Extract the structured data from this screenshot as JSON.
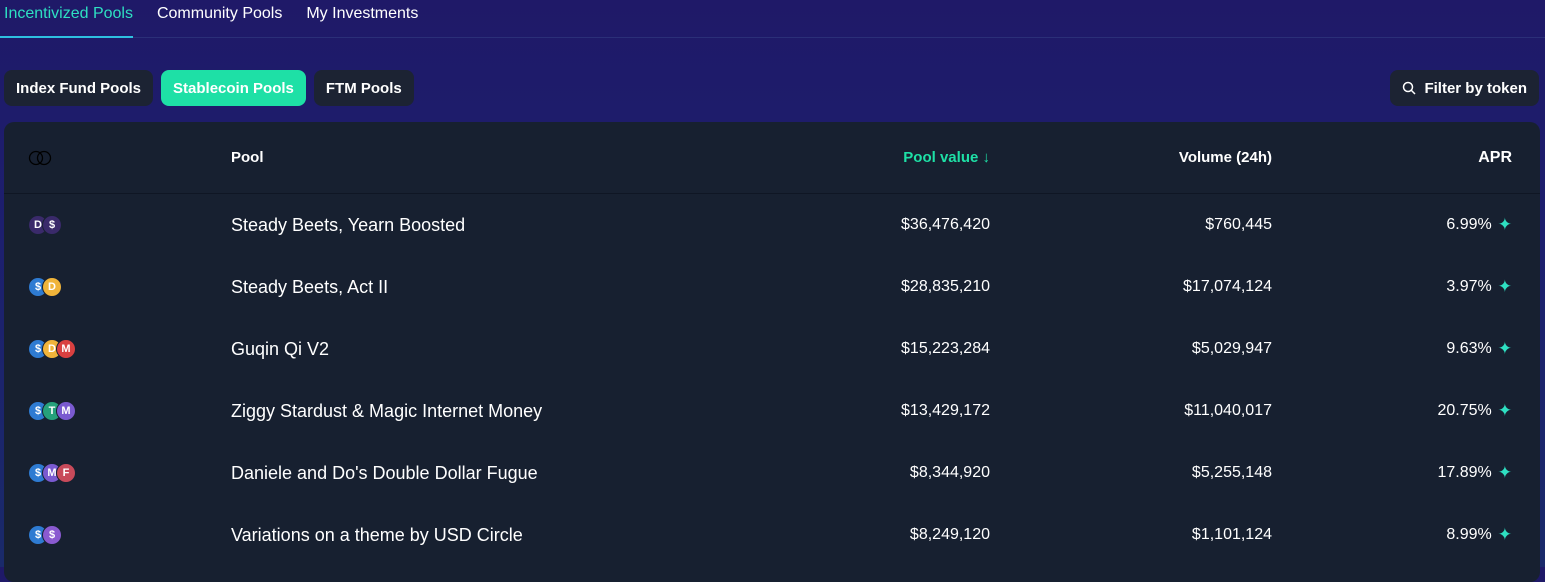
{
  "tabs": [
    "Incentivized Pools",
    "Community Pools",
    "My Investments"
  ],
  "chips": [
    "Index Fund Pools",
    "Stablecoin Pools",
    "FTM Pools"
  ],
  "filter_label": "Filter by token",
  "columns": {
    "pool": "Pool",
    "pool_value": "Pool value ↓",
    "volume": "Volume (24h)",
    "apr": "APR"
  },
  "accent": "#1ee0a6",
  "rows": [
    {
      "tokens": [
        {
          "s": "D",
          "c": "#3a2a6a"
        },
        {
          "s": "$",
          "c": "#3a2a6a"
        }
      ],
      "name": "Steady Beets, Yearn Boosted",
      "value": "$36,476,420",
      "volume": "$760,445",
      "apr": "6.99%"
    },
    {
      "tokens": [
        {
          "s": "$",
          "c": "#2e7bd2"
        },
        {
          "s": "D",
          "c": "#f0b43a"
        }
      ],
      "name": "Steady Beets, Act II",
      "value": "$28,835,210",
      "volume": "$17,074,124",
      "apr": "3.97%"
    },
    {
      "tokens": [
        {
          "s": "$",
          "c": "#2e7bd2"
        },
        {
          "s": "D",
          "c": "#f0b43a"
        },
        {
          "s": "M",
          "c": "#d94040"
        }
      ],
      "name": "Guqin Qi V2",
      "value": "$15,223,284",
      "volume": "$5,029,947",
      "apr": "9.63%"
    },
    {
      "tokens": [
        {
          "s": "$",
          "c": "#2e7bd2"
        },
        {
          "s": "T",
          "c": "#26a17b"
        },
        {
          "s": "M",
          "c": "#7a5ad0"
        }
      ],
      "name": "Ziggy Stardust & Magic Internet Money",
      "value": "$13,429,172",
      "volume": "$11,040,017",
      "apr": "20.75%"
    },
    {
      "tokens": [
        {
          "s": "$",
          "c": "#2e7bd2"
        },
        {
          "s": "M",
          "c": "#7a5ad0"
        },
        {
          "s": "F",
          "c": "#c84a5a"
        }
      ],
      "name": "Daniele and Do's Double Dollar Fugue",
      "value": "$8,344,920",
      "volume": "$5,255,148",
      "apr": "17.89%"
    },
    {
      "tokens": [
        {
          "s": "$",
          "c": "#2e7bd2"
        },
        {
          "s": "$",
          "c": "#8a5ad0"
        }
      ],
      "name": "Variations on a theme by USD Circle",
      "value": "$8,249,120",
      "volume": "$1,101,124",
      "apr": "8.99%"
    }
  ]
}
